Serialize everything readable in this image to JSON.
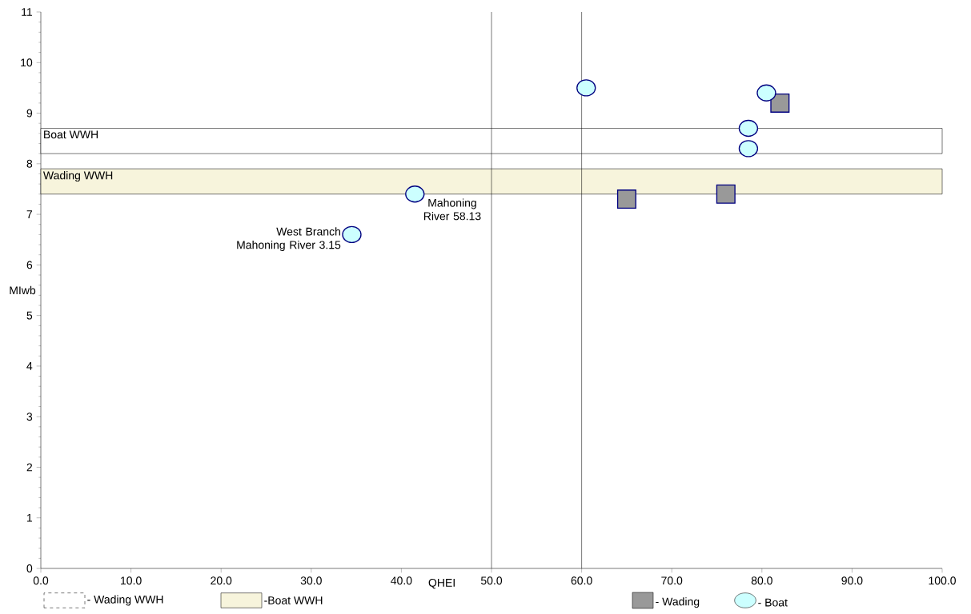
{
  "chart_data": {
    "type": "scatter",
    "xlabel": "QHEI",
    "ylabel": "MIwb",
    "xlim": [
      0,
      100
    ],
    "ylim": [
      0,
      11
    ],
    "xticks": [
      {
        "value": 0,
        "label": "0.0"
      },
      {
        "value": 10,
        "label": "10.0"
      },
      {
        "value": 20,
        "label": "20.0"
      },
      {
        "value": 30,
        "label": "30.0"
      },
      {
        "value": 40,
        "label": "40.0"
      },
      {
        "value": 50,
        "label": "50.0"
      },
      {
        "value": 60,
        "label": "60.0"
      },
      {
        "value": 70,
        "label": "70.0"
      },
      {
        "value": 80,
        "label": "80.0"
      },
      {
        "value": 90,
        "label": "90.0"
      },
      {
        "value": 100,
        "label": "100.0"
      }
    ],
    "yticks": [
      0,
      1,
      2,
      3,
      4,
      5,
      6,
      7,
      8,
      9,
      10,
      11
    ],
    "series": [
      {
        "name": "- Wading",
        "color": "#999999",
        "marker": "square",
        "x": [
          82,
          65,
          76
        ],
        "values": [
          9.2,
          7.3,
          7.4
        ]
      },
      {
        "name": "- Boat",
        "color": "#ccffff",
        "marker": "circle",
        "x": [
          60.5,
          80.5,
          78.5,
          78.5,
          41.5,
          34.5
        ],
        "values": [
          9.5,
          9.4,
          8.7,
          8.3,
          7.4,
          6.6
        ]
      }
    ],
    "ref_lines": [
      {
        "axis": "x",
        "value": 50,
        "color": "#000000"
      },
      {
        "axis": "x",
        "value": 60,
        "color": "#000000"
      }
    ],
    "bands": [
      {
        "axis": "y",
        "from": 8.2,
        "to": 8.7,
        "label": "Boat WWH",
        "color": "#ffffff"
      },
      {
        "axis": "y",
        "from": 7.4,
        "to": 7.9,
        "label": "Wading WWH",
        "color": "#f7f4dc"
      }
    ],
    "annotations": [
      "- Wading WWH",
      "-Boat WWH",
      {
        "text": "West Branch Mahoning River 3.15",
        "x": 34.5,
        "y": 6.6
      },
      {
        "text": "Mahoning River 58.13",
        "x": 41.5,
        "y": 7.4
      }
    ],
    "legend": "bottom"
  }
}
